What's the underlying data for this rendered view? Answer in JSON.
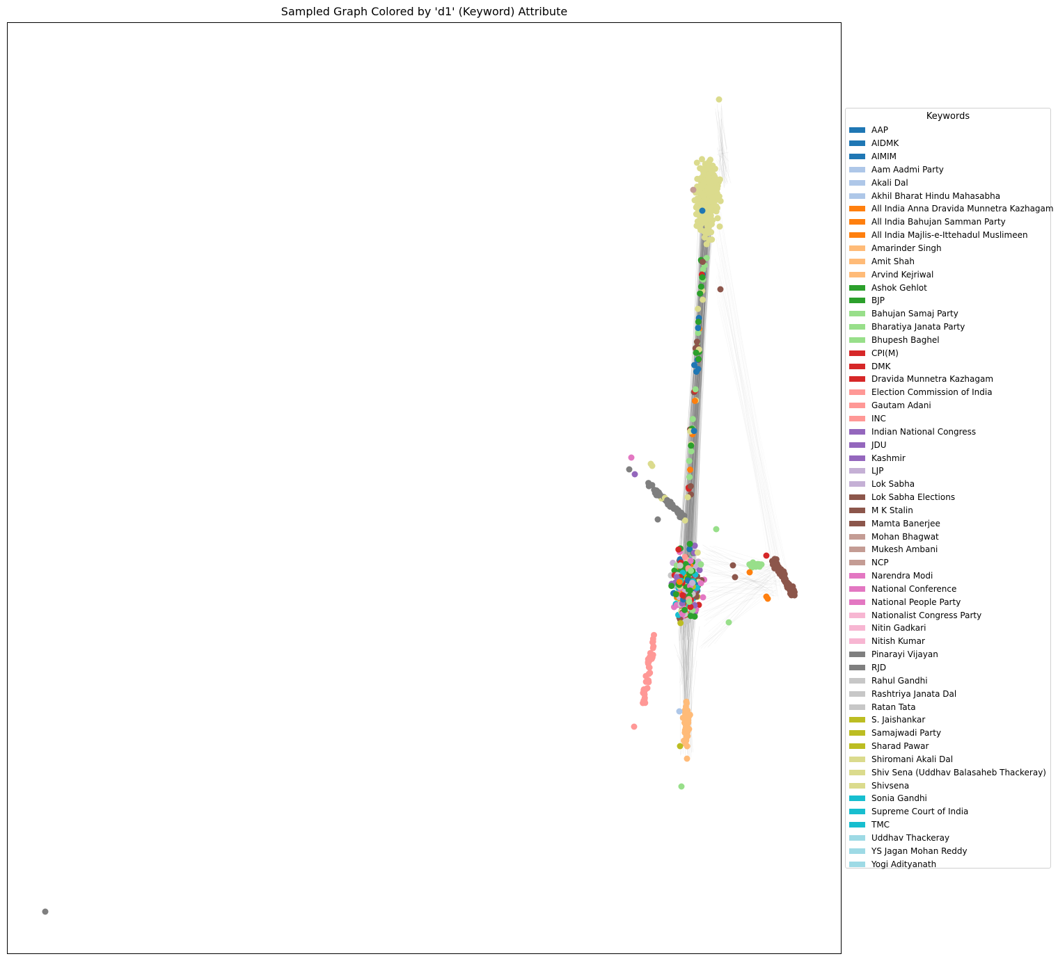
{
  "title": "Sampled Graph Colored by 'd1' (Keyword) Attribute",
  "legend": {
    "title": "Keywords",
    "items": [
      {
        "label": "AAP",
        "color": "#1f77b4"
      },
      {
        "label": "AIDMK",
        "color": "#1f77b4"
      },
      {
        "label": "AIMIM",
        "color": "#1f77b4"
      },
      {
        "label": "Aam Aadmi Party",
        "color": "#aec7e8"
      },
      {
        "label": "Akali Dal",
        "color": "#aec7e8"
      },
      {
        "label": "Akhil Bharat Hindu Mahasabha",
        "color": "#aec7e8"
      },
      {
        "label": "All India Anna Dravida Munnetra Kazhagam",
        "color": "#ff7f0e"
      },
      {
        "label": "All India Bahujan Samman Party",
        "color": "#ff7f0e"
      },
      {
        "label": "All India Majlis-e-Ittehadul Muslimeen",
        "color": "#ff7f0e"
      },
      {
        "label": "Amarinder Singh",
        "color": "#ffbb78"
      },
      {
        "label": "Amit Shah",
        "color": "#ffbb78"
      },
      {
        "label": "Arvind Kejriwal",
        "color": "#ffbb78"
      },
      {
        "label": "Ashok Gehlot",
        "color": "#2ca02c"
      },
      {
        "label": "BJP",
        "color": "#2ca02c"
      },
      {
        "label": "Bahujan Samaj Party",
        "color": "#98df8a"
      },
      {
        "label": "Bharatiya Janata Party",
        "color": "#98df8a"
      },
      {
        "label": "Bhupesh Baghel",
        "color": "#98df8a"
      },
      {
        "label": "CPI(M)",
        "color": "#d62728"
      },
      {
        "label": "DMK",
        "color": "#d62728"
      },
      {
        "label": "Dravida Munnetra Kazhagam",
        "color": "#d62728"
      },
      {
        "label": "Election Commission of India",
        "color": "#ff9896"
      },
      {
        "label": "Gautam Adani",
        "color": "#ff9896"
      },
      {
        "label": "INC",
        "color": "#ff9896"
      },
      {
        "label": "Indian National Congress",
        "color": "#9467bd"
      },
      {
        "label": "JDU",
        "color": "#9467bd"
      },
      {
        "label": "Kashmir",
        "color": "#9467bd"
      },
      {
        "label": "LJP",
        "color": "#c5b0d5"
      },
      {
        "label": "Lok Sabha",
        "color": "#c5b0d5"
      },
      {
        "label": "Lok Sabha Elections",
        "color": "#8c564b"
      },
      {
        "label": "M K Stalin",
        "color": "#8c564b"
      },
      {
        "label": "Mamta Banerjee",
        "color": "#8c564b"
      },
      {
        "label": "Mohan Bhagwat",
        "color": "#c49c94"
      },
      {
        "label": "Mukesh Ambani",
        "color": "#c49c94"
      },
      {
        "label": "NCP",
        "color": "#c49c94"
      },
      {
        "label": "Narendra Modi",
        "color": "#e377c2"
      },
      {
        "label": "National Conference",
        "color": "#e377c2"
      },
      {
        "label": "National People Party",
        "color": "#e377c2"
      },
      {
        "label": "Nationalist Congress Party",
        "color": "#f7b6d2"
      },
      {
        "label": "Nitin Gadkari",
        "color": "#f7b6d2"
      },
      {
        "label": "Nitish Kumar",
        "color": "#f7b6d2"
      },
      {
        "label": "Pinarayi Vijayan",
        "color": "#7f7f7f"
      },
      {
        "label": "RJD",
        "color": "#7f7f7f"
      },
      {
        "label": "Rahul Gandhi",
        "color": "#c7c7c7"
      },
      {
        "label": "Rashtriya Janata Dal",
        "color": "#c7c7c7"
      },
      {
        "label": "Ratan Tata",
        "color": "#c7c7c7"
      },
      {
        "label": "S. Jaishankar",
        "color": "#bcbd22"
      },
      {
        "label": "Samajwadi Party",
        "color": "#bcbd22"
      },
      {
        "label": "Sharad Pawar",
        "color": "#bcbd22"
      },
      {
        "label": "Shiromani Akali Dal",
        "color": "#dbdb8d"
      },
      {
        "label": "Shiv Sena (Uddhav Balasaheb Thackeray)",
        "color": "#dbdb8d"
      },
      {
        "label": "Shivsena",
        "color": "#dbdb8d"
      },
      {
        "label": "Sonia Gandhi",
        "color": "#17becf"
      },
      {
        "label": "Supreme Court of India",
        "color": "#17becf"
      },
      {
        "label": "TMC",
        "color": "#17becf"
      },
      {
        "label": "Uddhav Thackeray",
        "color": "#9edae5"
      },
      {
        "label": "YS Jagan Mohan Reddy",
        "color": "#9edae5"
      },
      {
        "label": "Yogi Adityanath",
        "color": "#9edae5"
      }
    ]
  },
  "colors": {
    "edge": "#808080",
    "dense_edge": "#000000"
  }
}
